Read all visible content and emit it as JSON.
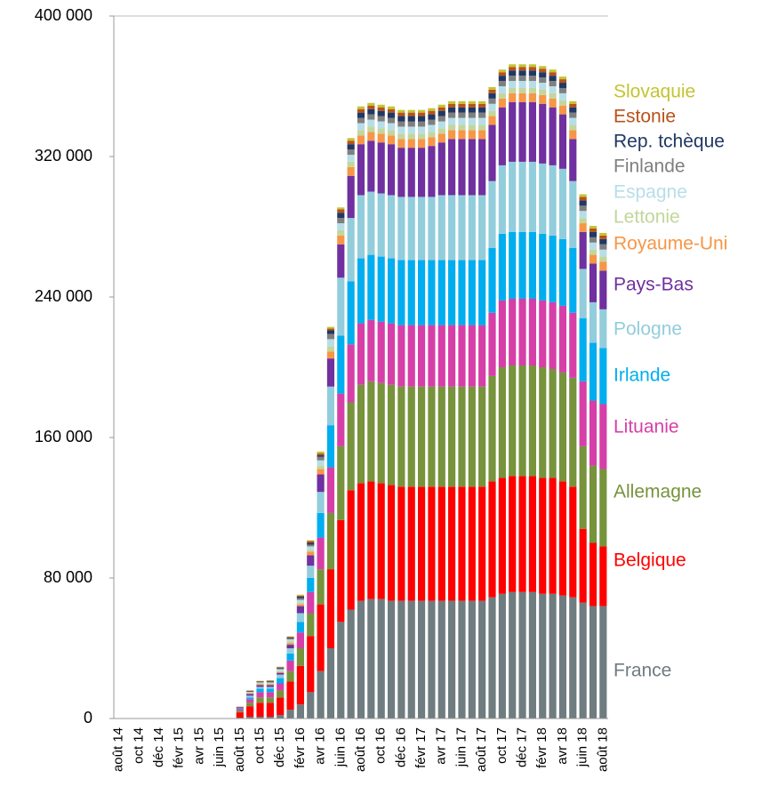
{
  "chart_data": {
    "type": "stacked_bar",
    "categories": [
      "août 14",
      null,
      "oct 14",
      null,
      "déc 14",
      null,
      "févr 15",
      null,
      "avr 15",
      null,
      "juin 15",
      null,
      "août 15",
      null,
      "oct 15",
      null,
      "déc 15",
      null,
      "févr 16",
      null,
      "avr 16",
      null,
      "juin 16",
      null,
      "août 16",
      null,
      "oct 16",
      null,
      "déc 16",
      null,
      "févr 17",
      null,
      "avr 17",
      null,
      "juin 17",
      null,
      "août 17",
      null,
      "oct 17",
      null,
      "déc 17",
      null,
      "févr 18",
      null,
      "avr 18",
      null,
      "juin 18",
      null,
      "août 18"
    ],
    "series": [
      {
        "name": "France",
        "color": "#6f7c80",
        "values": [
          0,
          0,
          0,
          0,
          0,
          0,
          0,
          0,
          0,
          0,
          0,
          0,
          0.5,
          1,
          1,
          1,
          2,
          5,
          8,
          15,
          27,
          40,
          55,
          62,
          67,
          68,
          68,
          67,
          67,
          67,
          67,
          67,
          67,
          67,
          67,
          67,
          67,
          69,
          71,
          72,
          72,
          72,
          71,
          71,
          70,
          69,
          66,
          64,
          64
        ]
      },
      {
        "name": "Belgique",
        "color": "#ff0000",
        "values": [
          0,
          0,
          0,
          0,
          0,
          0,
          0,
          0,
          0,
          0,
          0,
          0,
          3,
          6,
          8,
          8,
          10,
          16,
          22,
          32,
          38,
          45,
          58,
          68,
          67,
          67,
          66,
          66,
          65,
          65,
          65,
          65,
          65,
          65,
          65,
          65,
          65,
          66,
          66,
          66,
          66,
          66,
          66,
          66,
          65,
          63,
          42,
          36,
          34
        ]
      },
      {
        "name": "Allemagne",
        "color": "#77933c",
        "values": [
          0,
          0,
          0,
          0,
          0,
          0,
          0,
          0,
          0,
          0,
          0,
          0,
          1,
          2,
          3,
          3,
          4,
          6,
          10,
          13,
          20,
          32,
          42,
          50,
          56,
          57,
          57,
          57,
          57,
          57,
          57,
          57,
          57,
          57,
          57,
          57,
          57,
          60,
          63,
          63,
          63,
          63,
          63,
          62,
          62,
          62,
          47,
          44,
          44
        ]
      },
      {
        "name": "Lituanie",
        "color": "#d63fa8",
        "values": [
          0,
          0,
          0,
          0,
          0,
          0,
          0,
          0,
          0,
          0,
          0,
          0,
          1,
          2,
          3,
          3,
          4,
          6,
          9,
          12,
          18,
          26,
          30,
          33,
          35,
          35,
          35,
          35,
          35,
          35,
          35,
          35,
          35,
          35,
          35,
          35,
          35,
          36,
          38,
          38,
          38,
          38,
          38,
          38,
          38,
          37,
          37,
          37,
          37
        ]
      },
      {
        "name": "Irlande",
        "color": "#00aeef",
        "values": [
          0,
          0,
          0,
          0,
          0,
          0,
          0,
          0,
          0,
          0,
          0,
          0,
          0.5,
          1,
          2,
          2,
          3,
          4,
          6,
          8,
          14,
          24,
          33,
          36,
          37,
          37,
          37,
          37,
          37,
          37,
          37,
          37,
          37,
          37,
          37,
          37,
          37,
          37,
          38,
          38,
          38,
          38,
          38,
          38,
          38,
          37,
          36,
          33,
          32
        ]
      },
      {
        "name": "Pologne",
        "color": "#92cddc",
        "values": [
          0,
          0,
          0,
          0,
          0,
          0,
          0,
          0,
          0,
          0,
          0,
          0,
          0,
          1,
          1,
          1,
          2,
          3,
          5,
          7,
          12,
          22,
          33,
          36,
          36,
          36,
          36,
          36,
          36,
          36,
          36,
          36,
          37,
          37,
          37,
          37,
          37,
          38,
          39,
          40,
          40,
          40,
          40,
          40,
          40,
          38,
          28,
          23,
          22
        ]
      },
      {
        "name": "Pays-Bas",
        "color": "#7030a0",
        "values": [
          0,
          0,
          0,
          0,
          0,
          0,
          0,
          0,
          0,
          0,
          0,
          0,
          0.5,
          1,
          1,
          1,
          1,
          2,
          4,
          6,
          10,
          16,
          19,
          24,
          29,
          29,
          29,
          29,
          28,
          28,
          28,
          29,
          30,
          32,
          32,
          32,
          32,
          32,
          33,
          34,
          34,
          34,
          34,
          33,
          31,
          24,
          21,
          22,
          22
        ]
      },
      {
        "name": "Royaume-Uni",
        "color": "#f79646",
        "values": [
          0,
          0,
          0,
          0,
          0,
          0,
          0,
          0,
          0,
          0,
          0,
          0,
          0.3,
          0.5,
          0.5,
          0.5,
          0.5,
          1,
          1,
          2,
          3,
          4,
          5,
          5,
          5,
          5,
          5,
          5,
          5,
          5,
          5,
          5,
          5,
          5,
          5,
          5,
          5,
          5,
          5,
          5,
          5,
          5,
          5,
          5,
          5,
          5,
          5,
          5,
          5
        ]
      },
      {
        "name": "Lettonie",
        "color": "#c3d69b",
        "values": [
          0,
          0,
          0,
          0,
          0,
          0,
          0,
          0,
          0,
          0,
          0,
          0,
          0,
          0.3,
          0.5,
          0.5,
          0.5,
          1,
          1,
          1,
          2,
          3,
          3,
          3,
          3,
          3,
          3,
          3,
          3,
          3,
          3,
          3,
          3,
          3,
          3,
          3,
          3,
          3,
          3,
          3,
          3,
          3,
          3,
          3,
          3,
          3,
          3,
          3,
          3
        ]
      },
      {
        "name": "Espagne",
        "color": "#b7dee8",
        "values": [
          0,
          0,
          0,
          0,
          0,
          0,
          0,
          0,
          0,
          0,
          0,
          0,
          0,
          0.3,
          0.5,
          0.5,
          1,
          1,
          1.5,
          2,
          3,
          4,
          4,
          4,
          4,
          4,
          4,
          4,
          4,
          4,
          4,
          4,
          4,
          4,
          4,
          4,
          4,
          4,
          4,
          4,
          4,
          4,
          4,
          4,
          4,
          4,
          4,
          4,
          4
        ]
      },
      {
        "name": "Finlande",
        "color": "#7f7f7f",
        "values": [
          0,
          0,
          0,
          0,
          0,
          0,
          0,
          0,
          0,
          0,
          0,
          0,
          0,
          0.3,
          0.3,
          0.5,
          0.5,
          0.5,
          1,
          1,
          2,
          3,
          3,
          3,
          3,
          3,
          3,
          3,
          3,
          3,
          3,
          3,
          3,
          3,
          3,
          3,
          3,
          3,
          3,
          3,
          3,
          3,
          3,
          3,
          3,
          3,
          3,
          3,
          3
        ]
      },
      {
        "name": "Rep. tchèque",
        "color": "#1f3864",
        "values": [
          0,
          0,
          0,
          0,
          0,
          0,
          0,
          0,
          0,
          0,
          0,
          0,
          0,
          0.3,
          0.3,
          0.3,
          0.5,
          0.5,
          1,
          1,
          1,
          2,
          3,
          3,
          3,
          3,
          3,
          3,
          3,
          3,
          3,
          3,
          3,
          3,
          3,
          3,
          3,
          3,
          3,
          3,
          3,
          3,
          3,
          3,
          3,
          3,
          3,
          3,
          3
        ]
      },
      {
        "name": "Estonie",
        "color": "#b8521a",
        "values": [
          0,
          0,
          0,
          0,
          0,
          0,
          0,
          0,
          0,
          0,
          0,
          0,
          0,
          0.2,
          0.2,
          0.3,
          0.3,
          0.5,
          0.5,
          1,
          1,
          1,
          2,
          2,
          2,
          2,
          2,
          2,
          2,
          2,
          2,
          2,
          2,
          2,
          2,
          2,
          2,
          2,
          2,
          2,
          2,
          2,
          2,
          2,
          2,
          2,
          2,
          2,
          2
        ]
      },
      {
        "name": "Slovaquie",
        "color": "#c4c430",
        "values": [
          0,
          0,
          0,
          0,
          0,
          0,
          0,
          0,
          0,
          0,
          0,
          0,
          0,
          0.1,
          0.2,
          0.2,
          0.2,
          0.3,
          0.5,
          0.5,
          1,
          1,
          1,
          1.5,
          1.5,
          1.5,
          1.5,
          1.5,
          1.5,
          1.5,
          1.5,
          1.5,
          1.5,
          1.5,
          1.5,
          1.5,
          1.5,
          1.5,
          1.5,
          1.5,
          1.5,
          1.5,
          1.5,
          1.5,
          1.5,
          1.5,
          1.5,
          1.5,
          1.5
        ]
      }
    ],
    "value_scale": 1000,
    "ylim": [
      0,
      400000
    ],
    "yticks": [
      {
        "value": 0,
        "label": "0"
      },
      {
        "value": 80000,
        "label": "80 000"
      },
      {
        "value": 160000,
        "label": "160 000"
      },
      {
        "value": 240000,
        "label": "240 000"
      },
      {
        "value": 320000,
        "label": "320 000"
      },
      {
        "value": 400000,
        "label": "400 000"
      }
    ],
    "grid": false
  }
}
